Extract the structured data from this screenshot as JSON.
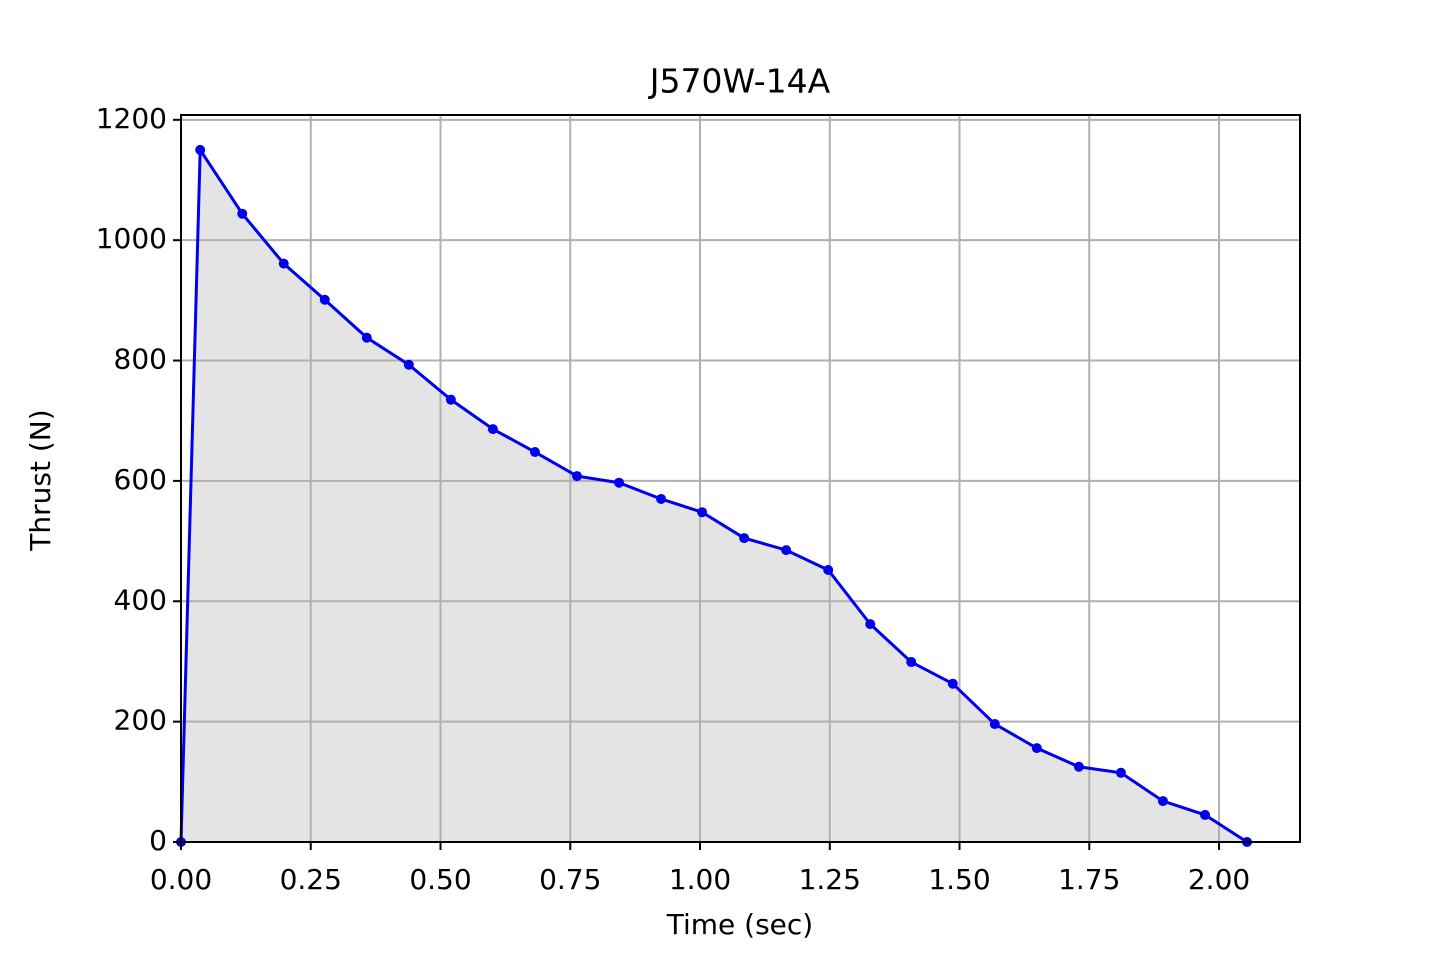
{
  "chart_data": {
    "type": "line",
    "title": "J570W-14A",
    "xlabel": "Time (sec)",
    "ylabel": "Thrust (N)",
    "x": [
      0,
      0.037,
      0.118,
      0.198,
      0.277,
      0.358,
      0.439,
      0.52,
      0.601,
      0.682,
      0.763,
      0.844,
      0.925,
      1.004,
      1.085,
      1.166,
      1.247,
      1.328,
      1.407,
      1.487,
      1.568,
      1.649,
      1.73,
      1.811,
      1.892,
      1.973,
      2.054
    ],
    "series": [
      {
        "name": "Thrust",
        "color": "#0000ee",
        "fill": "#e4e4e4",
        "values": [
          0,
          1150,
          1044,
          961,
          901,
          838,
          793,
          735,
          686,
          648,
          608,
          597,
          570,
          548,
          505,
          485,
          452,
          362,
          299,
          263,
          196,
          156,
          125,
          115,
          68,
          45,
          0
        ]
      }
    ],
    "xlim": [
      0,
      2.156
    ],
    "ylim": [
      0,
      1208
    ],
    "xticks": [
      {
        "value": 0,
        "label": "0.00"
      },
      {
        "value": 0.25,
        "label": "0.25"
      },
      {
        "value": 0.5,
        "label": "0.50"
      },
      {
        "value": 0.75,
        "label": "0.75"
      },
      {
        "value": 1,
        "label": "1.00"
      },
      {
        "value": 1.25,
        "label": "1.25"
      },
      {
        "value": 1.5,
        "label": "1.50"
      },
      {
        "value": 1.75,
        "label": "1.75"
      },
      {
        "value": 2,
        "label": "2.00"
      }
    ],
    "yticks": [
      0,
      200,
      400,
      600,
      800,
      1000,
      1200
    ],
    "grid": true
  }
}
